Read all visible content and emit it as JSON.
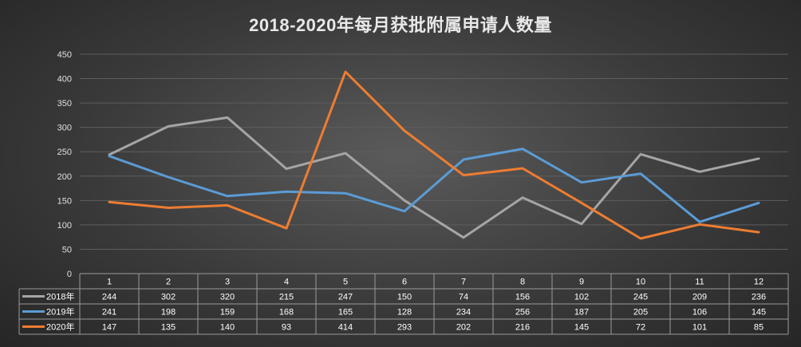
{
  "chart_data": {
    "type": "line",
    "title": "2018-2020年每月获批附属申请人数量",
    "categories": [
      "1",
      "2",
      "3",
      "4",
      "5",
      "6",
      "7",
      "8",
      "9",
      "10",
      "11",
      "12"
    ],
    "ylim": [
      0,
      450
    ],
    "yticks": [
      "0",
      "50",
      "100",
      "150",
      "200",
      "250",
      "300",
      "350",
      "400",
      "450"
    ],
    "grid": true,
    "legend": "data-table-left",
    "series": [
      {
        "name": "2018年",
        "color": "#a5a5a5",
        "values": [
          244,
          302,
          320,
          215,
          247,
          150,
          74,
          156,
          102,
          245,
          209,
          236
        ]
      },
      {
        "name": "2019年",
        "color": "#5b9bd5",
        "values": [
          241,
          198,
          159,
          168,
          165,
          128,
          234,
          256,
          187,
          205,
          106,
          145
        ]
      },
      {
        "name": "2020年",
        "color": "#ed7d31",
        "values": [
          147,
          135,
          140,
          93,
          414,
          293,
          202,
          216,
          145,
          72,
          101,
          85
        ]
      }
    ]
  }
}
